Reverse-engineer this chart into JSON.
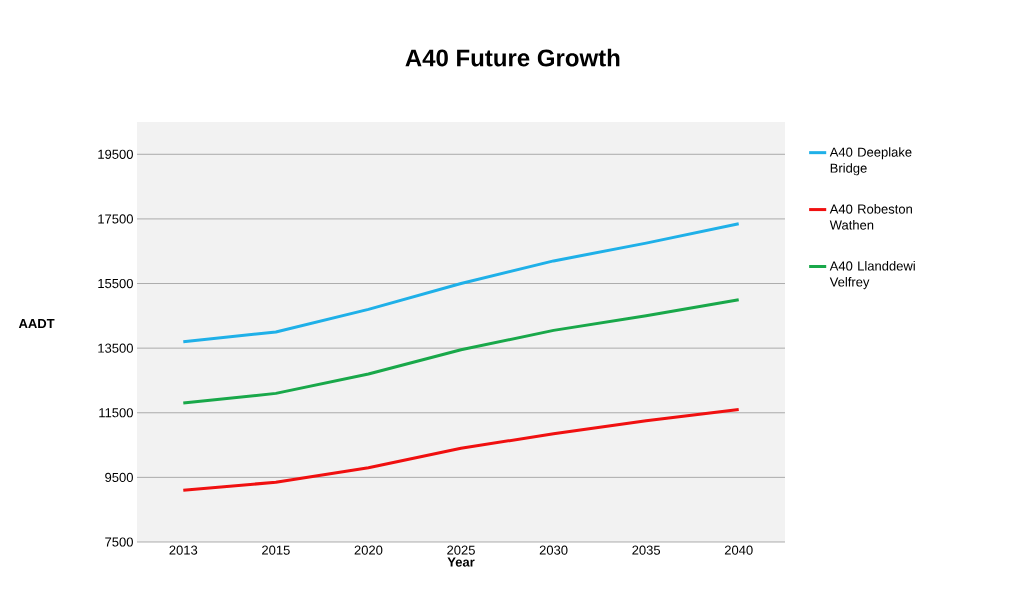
{
  "chart_data": {
    "type": "line",
    "title": "A40 Future Growth",
    "xlabel": "Year",
    "ylabel": "AADT",
    "categories": [
      "2013",
      "2015",
      "2020",
      "2025",
      "2030",
      "2035",
      "2040"
    ],
    "series": [
      {
        "name": "A40 Deeplake Bridge",
        "color": "#1fb0e8",
        "values": [
          13700,
          14000,
          14700,
          15500,
          16200,
          16750,
          17350
        ]
      },
      {
        "name": "A40 Robeston Wathen",
        "color": "#f01010",
        "values": [
          9100,
          9350,
          9800,
          10400,
          10850,
          11250,
          11600
        ]
      },
      {
        "name": "A40 Llanddewi Velfrey",
        "color": "#19a84a",
        "values": [
          11800,
          12100,
          12700,
          13450,
          14050,
          14500,
          15000
        ]
      }
    ],
    "ylim": [
      7500,
      20500
    ],
    "yticks": [
      7500,
      9500,
      11500,
      13500,
      15500,
      17500,
      19500
    ],
    "grid": "y",
    "legend": "right",
    "marker": "none",
    "line_style": "solid"
  }
}
